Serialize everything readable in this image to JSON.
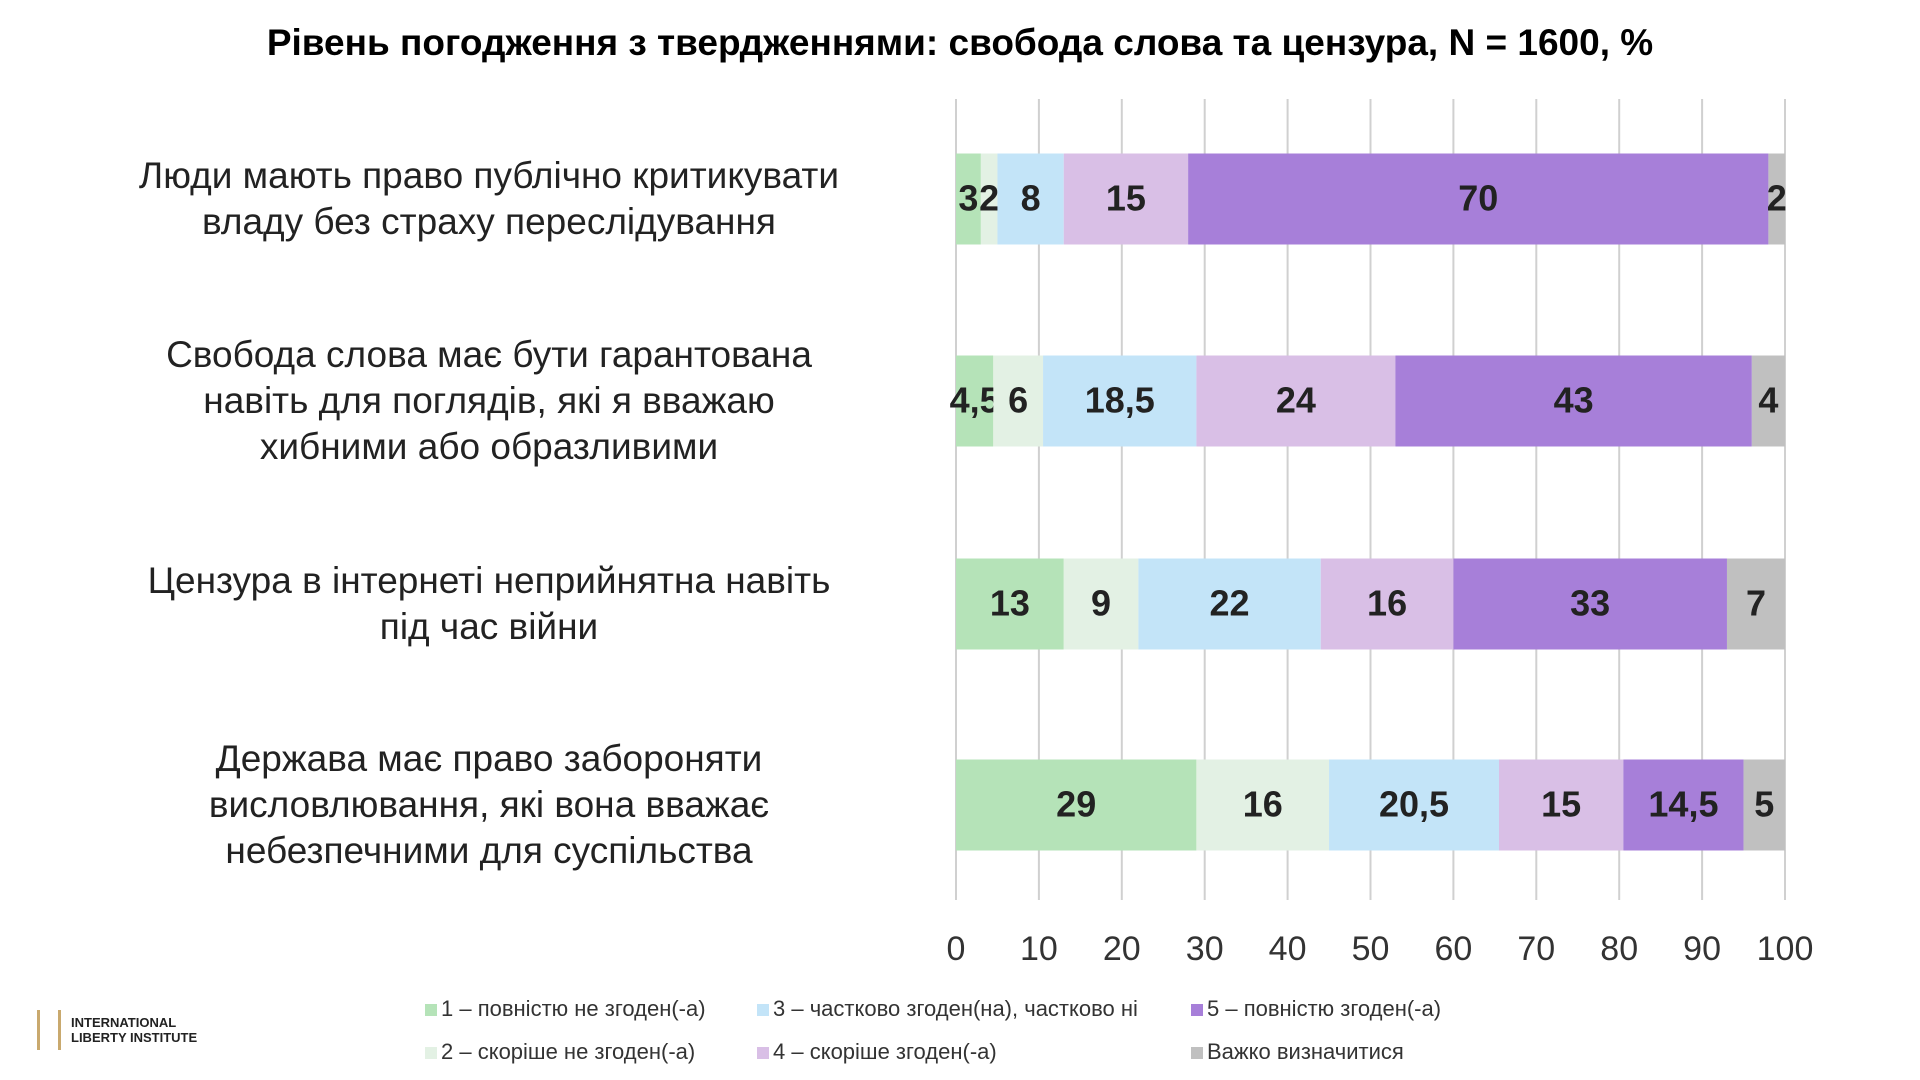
{
  "chart_data": {
    "type": "stacked-barh",
    "title": "Рівень погодження з твердженнями: свобода слова та цензура, N = 1600, %",
    "categories": [
      "Люди мають право публічно критикувати\nвладу без страху переслідування",
      "Свобода слова має бути гарантована\nнавіть для поглядів, які я вважаю\nхибними або образливими",
      "Цензура в інтернеті неприйнятна навіть\nпід час війни",
      "Держава має право забороняти\nвисловлювання, які вона вважає\nнебезпечними для суспільства"
    ],
    "series": [
      {
        "name": "1 – повністю не згоден(-а)",
        "color": "#b5e3b8",
        "values": [
          3,
          4.5,
          13,
          29
        ],
        "value_labels": [
          "3",
          "4,5",
          "13",
          "29"
        ]
      },
      {
        "name": "2 – скоріше не згоден(-а)",
        "color": "#e3f1e4",
        "values": [
          2,
          6,
          9,
          16
        ],
        "value_labels": [
          "2",
          "6",
          "9",
          "16"
        ]
      },
      {
        "name": "3 – частково згоден(на), частково ні",
        "color": "#c3e4f8",
        "values": [
          8,
          18.5,
          22,
          20.5
        ],
        "value_labels": [
          "8",
          "18,5",
          "22",
          "20,5"
        ]
      },
      {
        "name": "4 – скоріше згоден(-а)",
        "color": "#d9bfe6",
        "values": [
          15,
          24,
          16,
          15
        ],
        "value_labels": [
          "15",
          "24",
          "16",
          "15"
        ]
      },
      {
        "name": "5 – повністю згоден(-а)",
        "color": "#a77fd9",
        "values": [
          70,
          43,
          33,
          14.5
        ],
        "value_labels": [
          "70",
          "43",
          "33",
          "14,5"
        ]
      },
      {
        "name": "Важко визначитися",
        "color": "#c0c0c0",
        "values": [
          2,
          4,
          7,
          5
        ],
        "value_labels": [
          "2",
          "4",
          "7",
          "5"
        ]
      }
    ],
    "xlim": [
      0,
      100
    ],
    "xticks": [
      0,
      10,
      20,
      30,
      40,
      50,
      60,
      70,
      80,
      90,
      100
    ],
    "grid": true,
    "legend": "bottom"
  },
  "logo": {
    "line1": "INTERNATIONAL",
    "line2": "LIBERTY INSTITUTE"
  }
}
